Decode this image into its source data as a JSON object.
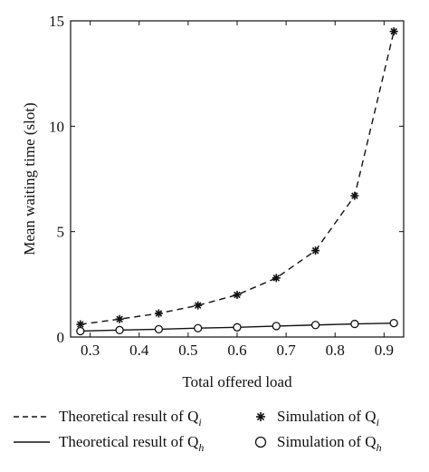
{
  "chart_data": {
    "type": "line",
    "title": "",
    "xlabel": "Total offered load",
    "ylabel": "Mean waiting time (slot)",
    "xlim": [
      0.26,
      0.94
    ],
    "ylim": [
      0,
      15
    ],
    "x_ticks": [
      0.3,
      0.4,
      0.5,
      0.6,
      0.7,
      0.8,
      0.9
    ],
    "x_tick_labels": [
      "0.3",
      "0.4",
      "0.5",
      "0.6",
      "0.7",
      "0.8",
      "0.9"
    ],
    "y_ticks": [
      0,
      5,
      10,
      15
    ],
    "y_tick_labels": [
      "0",
      "5",
      "10",
      "15"
    ],
    "grid": false,
    "legend_position": "bottom",
    "x": [
      0.28,
      0.36,
      0.44,
      0.52,
      0.6,
      0.68,
      0.76,
      0.84,
      0.92
    ],
    "series": [
      {
        "name": "Theoretical result of Q_i",
        "legend_main": "Theoretical result of Q",
        "legend_sub": "i",
        "style": "dashed-line",
        "values": [
          0.6,
          0.85,
          1.12,
          1.5,
          2.0,
          2.8,
          4.1,
          6.7,
          14.5
        ]
      },
      {
        "name": "Simulation of Q_i",
        "legend_main": "Simulation of Q",
        "legend_sub": "i",
        "style": "star-marker",
        "values": [
          0.6,
          0.85,
          1.12,
          1.5,
          2.0,
          2.8,
          4.1,
          6.7,
          14.5
        ]
      },
      {
        "name": "Theoretical result of Q_h",
        "legend_main": "Theoretical result of Q",
        "legend_sub": "h",
        "style": "solid-line",
        "values": [
          0.28,
          0.33,
          0.37,
          0.42,
          0.46,
          0.52,
          0.57,
          0.62,
          0.66
        ]
      },
      {
        "name": "Simulation of Q_h",
        "legend_main": "Simulation of Q",
        "legend_sub": "h",
        "style": "circle-marker",
        "values": [
          0.28,
          0.33,
          0.37,
          0.42,
          0.46,
          0.52,
          0.57,
          0.62,
          0.66
        ]
      }
    ],
    "colors": {
      "line": "#111111",
      "background": "#ffffff"
    }
  }
}
